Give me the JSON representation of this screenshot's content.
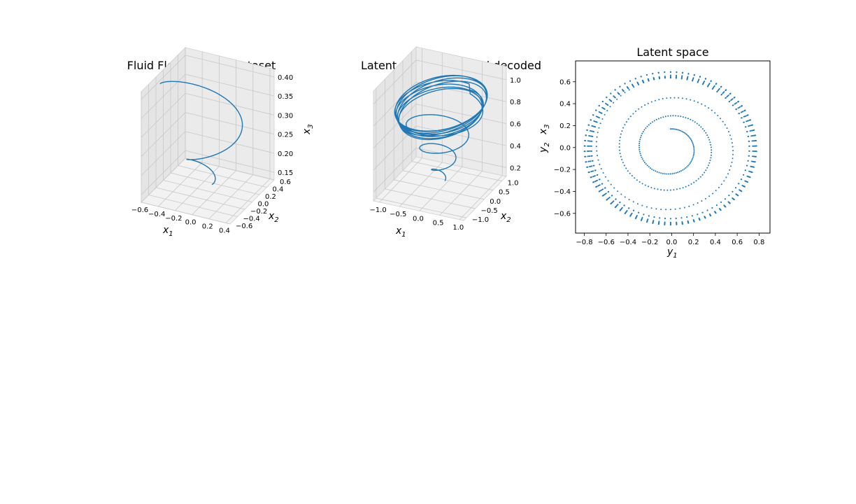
{
  "chart_data": [
    {
      "type": "line3d",
      "title": "Fluid Flow training dataset",
      "xlabel": "x",
      "xlabel_sub": "1",
      "ylabel": "x",
      "ylabel_sub": "2",
      "zlabel": "x",
      "zlabel_sub": "3",
      "xlim": [
        -0.6,
        0.45
      ],
      "ylim": [
        -0.6,
        0.6
      ],
      "zlim": [
        0.13,
        0.42
      ],
      "xticks": [
        -0.6,
        -0.4,
        -0.2,
        0.0,
        0.2,
        0.4
      ],
      "yticks": [
        -0.6,
        -0.4,
        -0.2,
        0.0,
        0.2,
        0.4,
        0.6
      ],
      "zticks": [
        0.15,
        0.2,
        0.25,
        0.3,
        0.35,
        0.4
      ],
      "xtick_labels": [
        "−0.6",
        "−0.4",
        "−0.2",
        "0.0",
        "0.2",
        "0.4"
      ],
      "ytick_labels": [
        "−0.6",
        "−0.4",
        "−0.2",
        "0.0",
        "0.2",
        "0.4",
        "0.6"
      ],
      "ztick_labels": [
        "0.15",
        "0.20",
        "0.25",
        "0.30",
        "0.35",
        "0.40"
      ],
      "grid": true,
      "series": [
        {
          "color": "#1f77b4",
          "trajectory": {
            "kind": "spiral",
            "r_start": 0.05,
            "r_end": 0.52,
            "turns": 1.55,
            "phase_start": 0.0,
            "z_start": 0.15,
            "z_end": 0.4
          }
        }
      ]
    },
    {
      "type": "line3d",
      "title": "Latent space predicted decoded",
      "xlabel": "x",
      "xlabel_sub": "1",
      "ylabel": "x",
      "ylabel_sub": "2",
      "zlabel": "x",
      "zlabel_sub": "3",
      "extra_label": "y",
      "extra_label_sub": "2",
      "xlim": [
        -1.15,
        1.1
      ],
      "ylim": [
        -1.15,
        1.25
      ],
      "zlim": [
        0.12,
        1.12
      ],
      "xticks": [
        -1.0,
        -0.5,
        0.0,
        0.5,
        1.0
      ],
      "yticks": [
        -1.0,
        -0.5,
        0.0,
        0.5,
        1.0
      ],
      "zticks": [
        0.2,
        0.4,
        0.6,
        0.8,
        1.0
      ],
      "xtick_labels": [
        "−1.0",
        "−0.5",
        "0.0",
        "0.5",
        "1.0"
      ],
      "ytick_labels": [
        "−1.0",
        "−0.5",
        "0.0",
        "0.5",
        "1.0"
      ],
      "ztick_labels": [
        "0.2",
        "0.4",
        "0.6",
        "0.8",
        "1.0"
      ],
      "grid": true,
      "series": [
        {
          "color": "#1f77b4",
          "trajectory": {
            "kind": "spiral_to_limit_cycle",
            "r_start": 0.1,
            "r_limit": 1.0,
            "turns_spiral": 3.2,
            "turns_cycle": 8,
            "z_start": 0.2,
            "z_limit": 0.85
          }
        }
      ]
    },
    {
      "type": "scatter",
      "title": "Latent space",
      "xlabel": "y",
      "xlabel_sub": "1",
      "ylabel": "",
      "xlim": [
        -0.88,
        0.9
      ],
      "ylim": [
        -0.78,
        0.79
      ],
      "xticks": [
        -0.8,
        -0.6,
        -0.4,
        -0.2,
        0.0,
        0.2,
        0.4,
        0.6,
        0.8
      ],
      "yticks": [
        -0.6,
        -0.4,
        -0.2,
        0.0,
        0.2,
        0.4,
        0.6
      ],
      "xtick_labels": [
        "−0.8",
        "−0.6",
        "−0.4",
        "−0.2",
        "0.0",
        "0.2",
        "0.4",
        "0.6",
        "0.8"
      ],
      "ytick_labels": [
        "−0.6",
        "−0.4",
        "−0.2",
        "0.0",
        "0.2",
        "0.4",
        "0.6"
      ],
      "grid": false,
      "series": [
        {
          "color": "#1f77b4",
          "trajectory": {
            "kind": "spiral_to_limit_cycle_2d",
            "center": [
              -0.01,
              -0.01
            ],
            "r_start": 0.2,
            "r_limit_x": 0.79,
            "r_limit_y": 0.7,
            "turns_spiral": 3.0,
            "turns_cycle": 8,
            "points_per_turn": 90
          }
        }
      ]
    }
  ]
}
